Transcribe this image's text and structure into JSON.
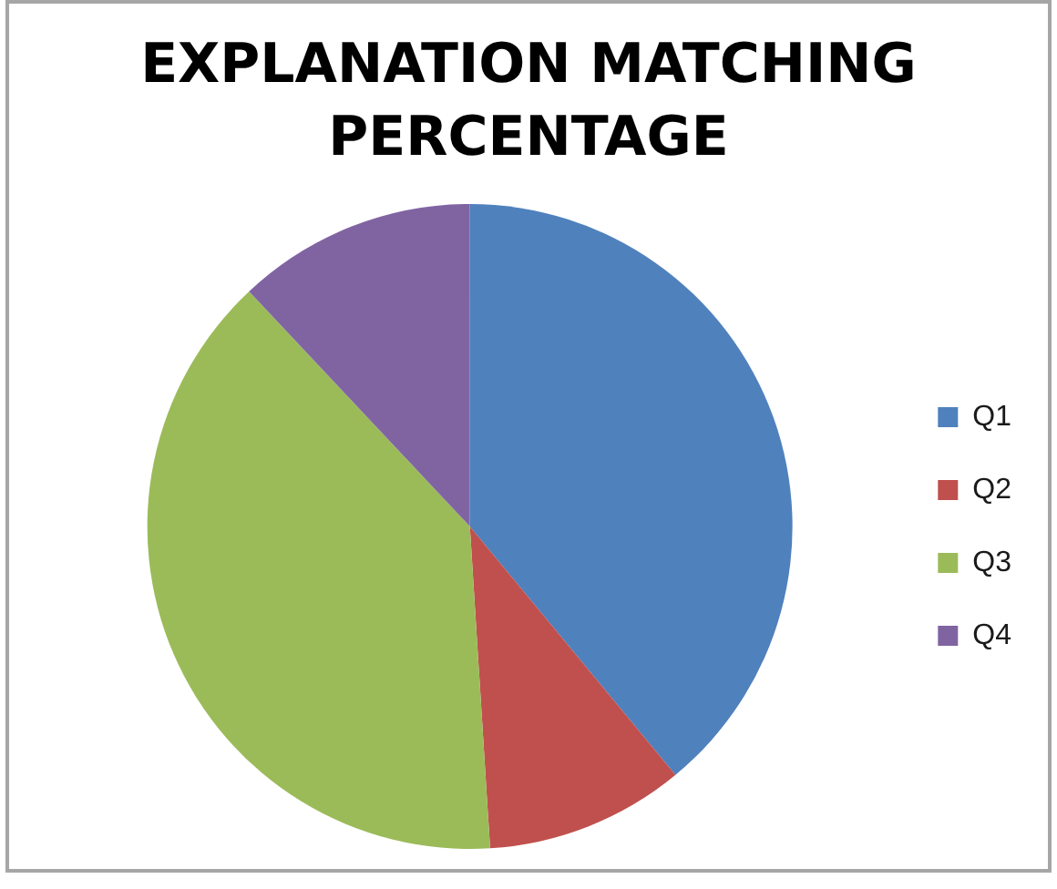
{
  "chart_data": {
    "type": "pie",
    "title": "EXPLANATION MATCHING PERCENTAGE",
    "categories": [
      "Q1",
      "Q2",
      "Q3",
      "Q4"
    ],
    "values": [
      39,
      10,
      39,
      12
    ],
    "colors": [
      "#4f81bd",
      "#c0504d",
      "#9bbb59",
      "#8064a2"
    ],
    "legend": "right"
  }
}
